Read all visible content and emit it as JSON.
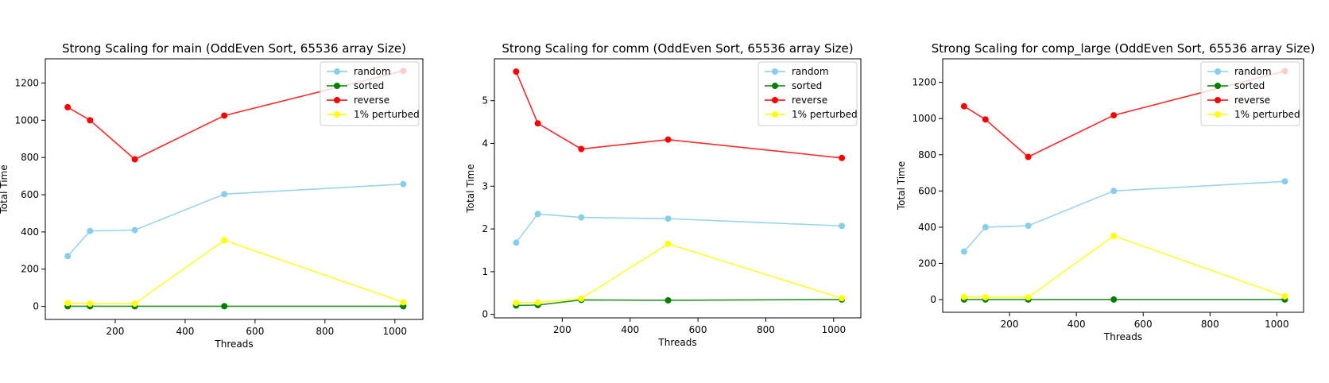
{
  "chart_data": [
    {
      "type": "line",
      "title": "Strong Scaling for main (OddEven Sort, 65536 array Size)",
      "xlabel": "Threads",
      "ylabel": "Total Time",
      "xlim": [
        0,
        1080
      ],
      "ylim": [
        -70,
        1330
      ],
      "xticks": [
        200,
        400,
        600,
        800,
        1000
      ],
      "yticks": [
        0,
        200,
        400,
        600,
        800,
        1000,
        1200
      ],
      "x": [
        64,
        128,
        256,
        512,
        1024
      ],
      "grid": false,
      "legend_position": "top-right",
      "series": [
        {
          "name": "random",
          "color": "#87ceeb",
          "values": [
            270,
            405,
            410,
            603,
            657
          ]
        },
        {
          "name": "sorted",
          "color": "#008000",
          "values": [
            1,
            1,
            1,
            1,
            1
          ]
        },
        {
          "name": "reverse",
          "color": "#ff0000",
          "values": [
            1070,
            1000,
            790,
            1025,
            1265
          ]
        },
        {
          "name": "1% perturbed",
          "color": "#ffff00",
          "values": [
            18,
            15,
            15,
            355,
            22
          ]
        }
      ]
    },
    {
      "type": "line",
      "title": "Strong Scaling for comm (OddEven Sort, 65536 array Size)",
      "xlabel": "Threads",
      "ylabel": "Total Time",
      "xlim": [
        0,
        1080
      ],
      "ylim": [
        -0.08,
        5.98
      ],
      "xticks": [
        200,
        400,
        600,
        800,
        1000
      ],
      "yticks": [
        0,
        1,
        2,
        3,
        4,
        5
      ],
      "x": [
        64,
        128,
        256,
        512,
        1024
      ],
      "grid": false,
      "legend_position": "top-right",
      "series": [
        {
          "name": "random",
          "color": "#87ceeb",
          "values": [
            1.68,
            2.35,
            2.27,
            2.24,
            2.07
          ]
        },
        {
          "name": "sorted",
          "color": "#008000",
          "values": [
            0.21,
            0.22,
            0.34,
            0.33,
            0.35
          ]
        },
        {
          "name": "reverse",
          "color": "#ff0000",
          "values": [
            5.68,
            4.47,
            3.87,
            4.09,
            3.66
          ]
        },
        {
          "name": "1% perturbed",
          "color": "#ffff00",
          "values": [
            0.27,
            0.28,
            0.37,
            1.65,
            0.38
          ]
        }
      ]
    },
    {
      "type": "line",
      "title": "Strong Scaling for comp_large (OddEven Sort, 65536 array Size)",
      "xlabel": "Threads",
      "ylabel": "Total Time",
      "xlim": [
        0,
        1080
      ],
      "ylim": [
        -70,
        1330
      ],
      "xticks": [
        200,
        400,
        600,
        800,
        1000
      ],
      "yticks": [
        0,
        200,
        400,
        600,
        800,
        1000,
        1200
      ],
      "x": [
        64,
        128,
        256,
        512,
        1024
      ],
      "grid": false,
      "legend_position": "top-right",
      "series": [
        {
          "name": "random",
          "color": "#87ceeb",
          "values": [
            265,
            400,
            408,
            600,
            653
          ]
        },
        {
          "name": "sorted",
          "color": "#008000",
          "values": [
            0.5,
            0.5,
            0.5,
            0.5,
            0.5
          ]
        },
        {
          "name": "reverse",
          "color": "#ff0000",
          "values": [
            1068,
            995,
            788,
            1018,
            1262
          ]
        },
        {
          "name": "1% perturbed",
          "color": "#ffff00",
          "values": [
            15,
            13,
            13,
            352,
            18
          ]
        }
      ]
    }
  ]
}
